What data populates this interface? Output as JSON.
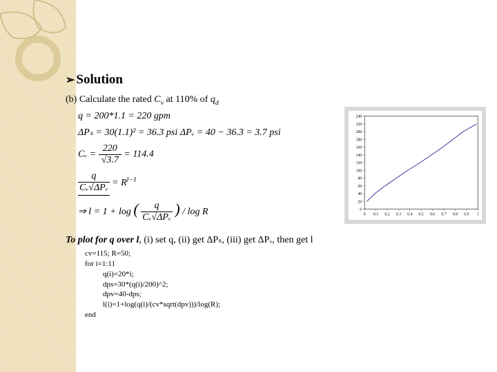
{
  "header": {
    "bullet": "➢",
    "title": "Solution"
  },
  "partB": {
    "label": "(b) Calculate the rated ",
    "cv": "C",
    "cvSub": "v",
    "at": " at 110% of ",
    "qd": "q",
    "qdSub": "d"
  },
  "equations": {
    "line1": "q = 200*1.1 = 220 gpm",
    "line2": "ΔPₛ = 30(1.1)² = 36.3 psi  ΔPᵥ = 40 − 36.3 = 3.7 psi",
    "line3_lhs": "Cᵥ = ",
    "line3_frac_num": "220",
    "line3_frac_den": "√3.7",
    "line3_rhs": " = 114.4",
    "line4_frac_num": "q",
    "line4_frac_den": "Cᵥ√ΔPᵥ",
    "line4_rhs": " = R",
    "line4_exp": "l−1",
    "line5_lhs": "⇒ l = 1 + log",
    "line5_paren_num": "q",
    "line5_paren_den": "Cᵥ√ΔPᵥ",
    "line5_rhs": " / log R"
  },
  "plotInstruction": {
    "prefix": "To plot for q over l",
    "rest": ", (i) set q, (ii) get ΔPₛ, (iii) get ΔPᵥ, then get l"
  },
  "code": {
    "l1": "cv=115; R=50;",
    "l2": "for i=1:11",
    "l3": "q(i)=20*i;",
    "l4": "dps=30*(q(i)/200)^2;",
    "l5": "dpv=40-dps;",
    "l6": "l(i)=1+log(q(i)/(cv*sqrt(dpv)))/log(R);",
    "l7": "end"
  },
  "chart": {
    "xmin": 0,
    "xmax": 1,
    "xtick": 0.1,
    "ymin": 0,
    "ymax": 240,
    "ytick": 20,
    "xvalues": [
      0.02,
      0.09,
      0.18,
      0.28,
      0.38,
      0.49,
      0.59,
      0.69,
      0.78,
      0.87,
      0.99
    ],
    "yvalues": [
      20,
      40,
      60,
      80,
      100,
      120,
      140,
      160,
      180,
      200,
      220
    ],
    "line_color": "#3030a0",
    "grid_color": "#e8e8e8",
    "axis_color": "#000000",
    "tick_fontsize": 6
  },
  "decor": {
    "leaf_stroke": "#c9b77e",
    "circle_stroke": "#d4c28a",
    "bg_pattern": "#f0e4c4"
  }
}
